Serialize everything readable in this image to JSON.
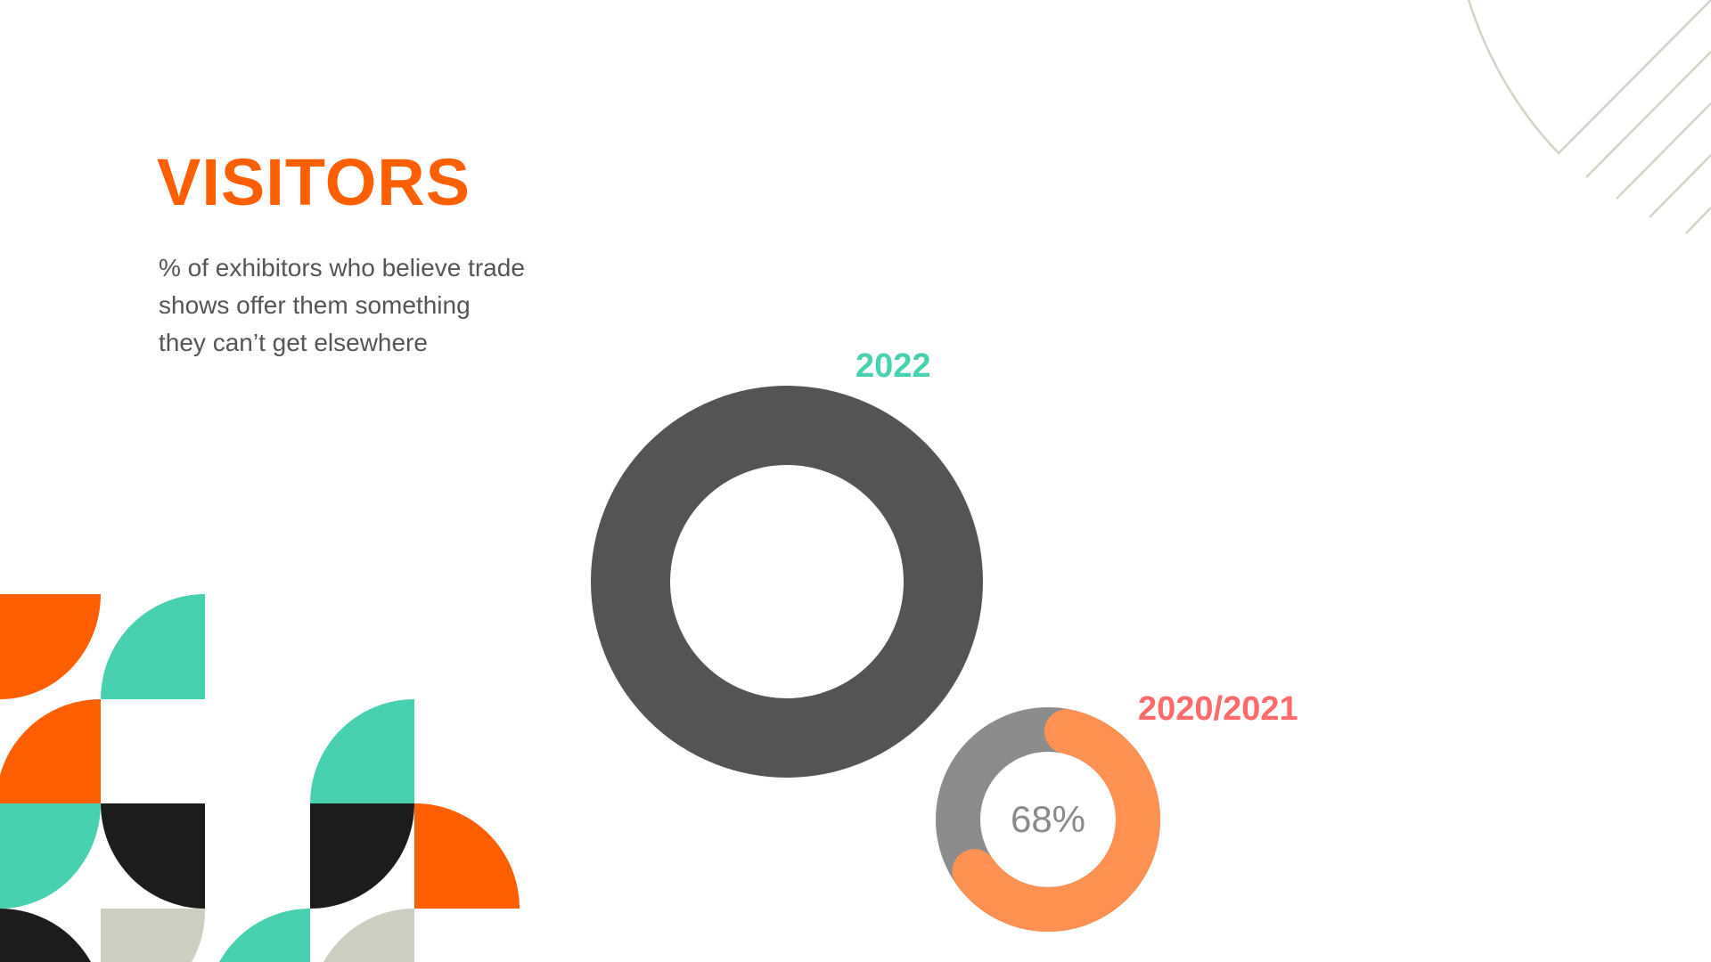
{
  "slide": {
    "title": "VISITORS",
    "subtitle_lines": [
      "% of exhibitors who believe trade",
      "shows offer them something",
      "they can’t get elsewhere"
    ]
  },
  "colors": {
    "title": "#ff5f00",
    "teal": "#48d1b0",
    "coral": "#ff6b6b",
    "dark_ring": "#545454",
    "gray_ring": "#8c8c8c",
    "orange_ring": "#ff9152",
    "black_tile": "#1c1c1c",
    "beige_tile": "#cdcdc0",
    "decor_line": "#d3d4c8"
  },
  "chart_data": [
    {
      "type": "pie",
      "variant": "donut",
      "series_label": "2022",
      "label_color": "#48d1b0"
    },
    {
      "type": "pie",
      "variant": "donut",
      "series_label": "2020/2021",
      "value_percent": 68,
      "value_label": "68%",
      "label_color": "#ff6b6b"
    }
  ]
}
